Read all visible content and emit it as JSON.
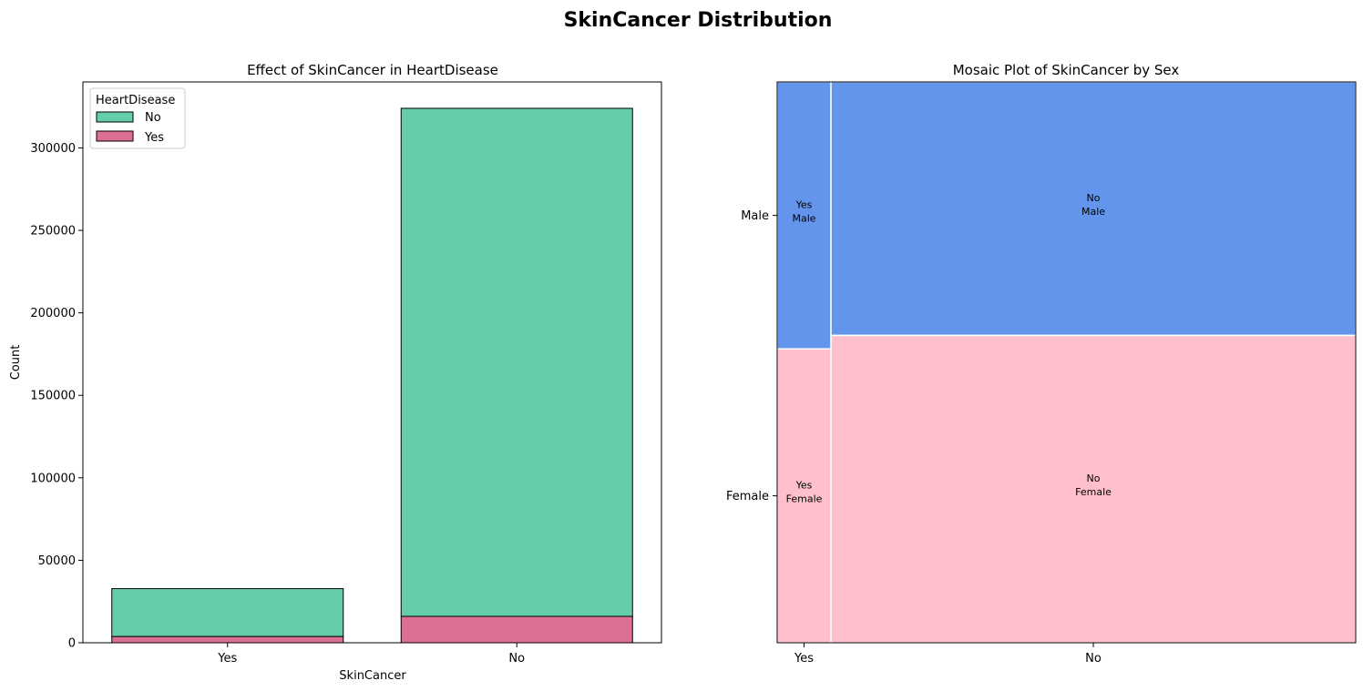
{
  "figure": {
    "suptitle": "SkinCancer Distribution"
  },
  "chart_data": [
    {
      "type": "bar",
      "stacked": true,
      "title": "Effect of SkinCancer in HeartDisease",
      "xlabel": "SkinCancer",
      "ylabel": "Count",
      "categories": [
        "Yes",
        "No"
      ],
      "ylim": [
        0,
        340000
      ],
      "yticks": [
        0,
        50000,
        100000,
        150000,
        200000,
        250000,
        300000
      ],
      "legend": {
        "title": "HeartDisease",
        "placement": "top-left"
      },
      "series": [
        {
          "name": "No",
          "values": [
            29000,
            308000
          ],
          "color": "#66cdaa"
        },
        {
          "name": "Yes",
          "values": [
            3800,
            16000
          ],
          "color": "#db7093"
        }
      ],
      "grid": false
    },
    {
      "type": "mosaic",
      "title": "Mosaic Plot of SkinCancer by Sex",
      "categories": [
        "Yes",
        "No"
      ],
      "column_fractions": [
        0.093,
        0.907
      ],
      "rows": [
        "Male",
        "Female"
      ],
      "row_fractions": {
        "Yes": {
          "Male": 0.476,
          "Female": 0.524
        },
        "No": {
          "Male": 0.452,
          "Female": 0.548
        }
      },
      "cell_labels": {
        "Yes": {
          "Male": [
            "Yes",
            "Male"
          ],
          "Female": [
            "Yes",
            "Female"
          ]
        },
        "No": {
          "Male": [
            "No",
            "Male"
          ],
          "Female": [
            "No",
            "Female"
          ]
        }
      },
      "colors": {
        "Male": "#6495ed",
        "Female": "#ffc0cb"
      },
      "grid": false
    }
  ]
}
